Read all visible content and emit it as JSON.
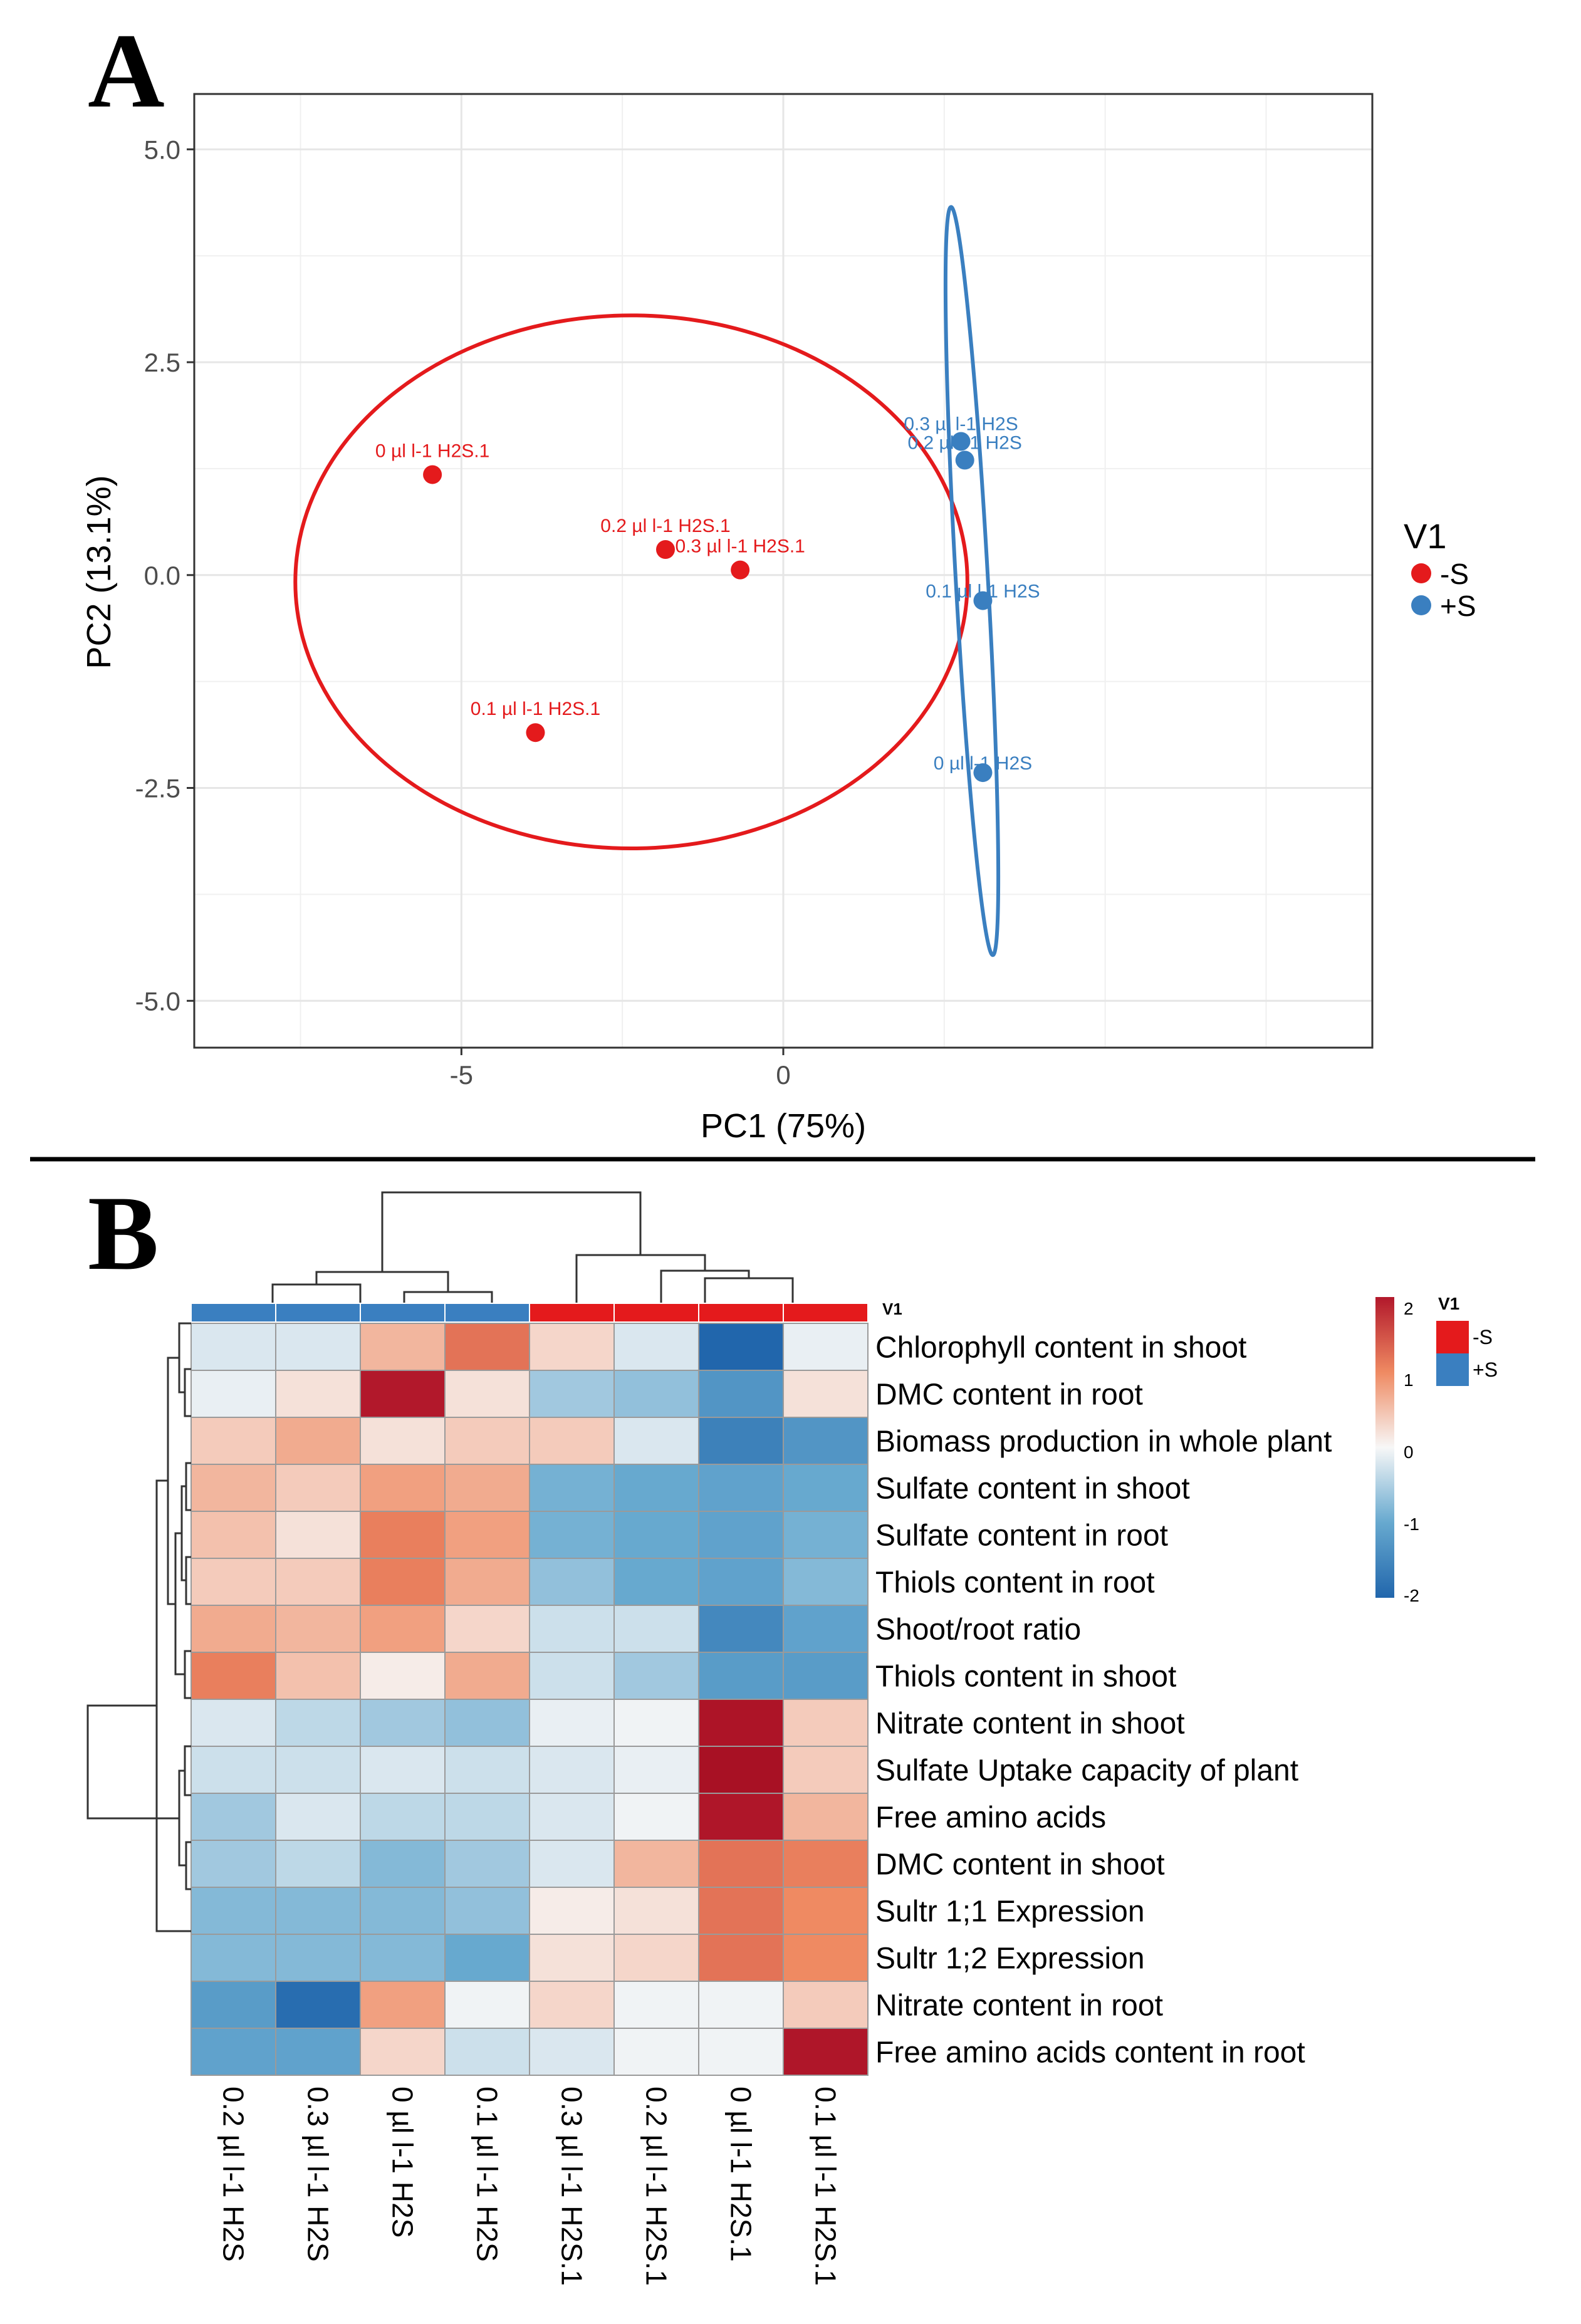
{
  "panel_a": {
    "letter": "A",
    "chart_data": {
      "type": "scatter",
      "xlabel": "PC1 (75%)",
      "ylabel": "PC2 (13.1%)",
      "xlim": [
        -9.15,
        9.15
      ],
      "ylim": [
        -5.55,
        5.65
      ],
      "x_ticks": [
        -5,
        0
      ],
      "x_tick_labels": [
        "-5",
        "0"
      ],
      "y_ticks": [
        5.0,
        2.5,
        0.0,
        -2.5,
        -5.0
      ],
      "y_tick_labels": [
        "5.0",
        "2.5",
        "0.0",
        "-2.5",
        "-5.0"
      ],
      "grid": true,
      "legend": {
        "title": "V1",
        "entries": [
          "-S",
          "+S"
        ],
        "placement": "right"
      },
      "series": [
        {
          "name": "-S",
          "color": "#e41a1c",
          "points": [
            {
              "x": -5.45,
              "y": 1.18,
              "label": "0 µl l-1 H2S.1"
            },
            {
              "x": -1.83,
              "y": 0.3,
              "label": "0.2 µl l-1 H2S.1"
            },
            {
              "x": -0.67,
              "y": 0.06,
              "label": "0.3 µl l-1 H2S.1"
            },
            {
              "x": -3.85,
              "y": -1.85,
              "label": "0.1 µl l-1 H2S.1"
            }
          ],
          "ellipse": {
            "cx": -2.36,
            "cy": -0.08,
            "rx": 5.22,
            "ry": 3.13,
            "angle": 0
          }
        },
        {
          "name": "+S",
          "color": "#3a7fc0",
          "points": [
            {
              "x": 2.76,
              "y": 1.57,
              "label": "0.3 µl l-1 H2S"
            },
            {
              "x": 2.82,
              "y": 1.35,
              "label": "0.2 µl l-1 H2S"
            },
            {
              "x": 3.1,
              "y": -0.3,
              "label": "0.1 µl l-1 H2S"
            },
            {
              "x": 3.1,
              "y": -2.32,
              "label": "0 µl l-1 H2S"
            }
          ],
          "ellipse": {
            "cx": 2.93,
            "cy": -0.07,
            "rx": 0.25,
            "ry": 4.4,
            "angle": -3.2
          }
        }
      ]
    }
  },
  "panel_b": {
    "letter": "B",
    "chart_data": {
      "type": "heatmap",
      "columns": [
        "0.2 µl l-1 H2S",
        "0.3 µl l-1 H2S",
        "0 µl l-1 H2S",
        "0.1 µl l-1 H2S",
        "0.3 µl l-1 H2S.1",
        "0.2 µl l-1 H2S.1",
        "0 µl l-1 H2S.1",
        "0.1 µl l-1 H2S.1"
      ],
      "column_groups": [
        "+S",
        "+S",
        "+S",
        "+S",
        "-S",
        "-S",
        "-S",
        "-S"
      ],
      "rows": [
        "Chlorophyll content in shoot",
        "DMC content in root",
        "Biomass production in whole plant",
        "Sulfate content in shoot",
        "Sulfate content in root",
        "Thiols content in root",
        "Shoot/root ratio",
        "Thiols content in shoot",
        "Nitrate content in shoot",
        "Sulfate Uptake capacity of plant",
        "Free amino acids",
        "DMC content in shoot",
        "Sultr 1;1 Expression",
        "Sultr 1;2 Expression",
        "Nitrate content in root",
        "Free amino acids content in root"
      ],
      "values": [
        [
          -0.2,
          -0.2,
          0.6,
          1.2,
          0.3,
          -0.2,
          -2.0,
          -0.1
        ],
        [
          -0.1,
          0.2,
          2.0,
          0.2,
          -0.6,
          -0.7,
          -1.3,
          0.2
        ],
        [
          0.4,
          0.7,
          0.2,
          0.4,
          0.4,
          -0.2,
          -1.6,
          -1.3
        ],
        [
          0.6,
          0.4,
          0.8,
          0.7,
          -0.9,
          -1.0,
          -1.1,
          -1.0
        ],
        [
          0.5,
          0.2,
          1.1,
          0.8,
          -0.9,
          -1.0,
          -1.1,
          -0.9
        ],
        [
          0.4,
          0.4,
          1.1,
          0.7,
          -0.7,
          -1.0,
          -1.1,
          -0.8
        ],
        [
          0.7,
          0.6,
          0.8,
          0.3,
          -0.3,
          -0.3,
          -1.5,
          -1.1
        ],
        [
          1.1,
          0.5,
          0.1,
          0.7,
          -0.3,
          -0.6,
          -1.2,
          -1.2
        ],
        [
          -0.2,
          -0.4,
          -0.6,
          -0.7,
          -0.1,
          -0.05,
          2.2,
          0.4
        ],
        [
          -0.3,
          -0.3,
          -0.2,
          -0.3,
          -0.2,
          -0.1,
          2.4,
          0.4
        ],
        [
          -0.6,
          -0.2,
          -0.4,
          -0.4,
          -0.2,
          -0.05,
          2.1,
          0.6
        ],
        [
          -0.6,
          -0.4,
          -0.8,
          -0.6,
          -0.2,
          0.6,
          1.2,
          1.1
        ],
        [
          -0.8,
          -0.8,
          -0.8,
          -0.7,
          0.1,
          0.2,
          1.2,
          1.0
        ],
        [
          -0.8,
          -0.8,
          -0.8,
          -1.0,
          0.2,
          0.3,
          1.2,
          1.0
        ],
        [
          -1.2,
          -1.9,
          0.8,
          -0.05,
          0.3,
          -0.05,
          -0.05,
          0.4
        ],
        [
          -1.1,
          -1.1,
          0.3,
          -0.3,
          -0.2,
          -0.05,
          -0.05,
          2.1
        ]
      ],
      "color_scale": {
        "min": -2,
        "max": 2,
        "ticks": [
          "2",
          "1",
          "0",
          "-1",
          "-2"
        ],
        "low": "#2c6db4",
        "mid": "#f7f7f7",
        "high": "#b2182b"
      },
      "annotation": {
        "title": "V1",
        "entries": [
          "-S",
          "+S"
        ],
        "colors": [
          "#e41a1c",
          "#3a7fc0"
        ],
        "bar_label": "V1"
      }
    }
  }
}
